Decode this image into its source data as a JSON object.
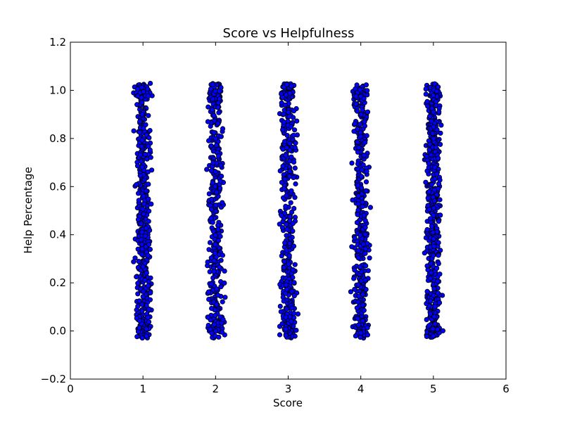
{
  "chart_data": {
    "type": "scatter",
    "title": "Score vs Helpfulness",
    "xlabel": "Score",
    "ylabel": "Help Percentage",
    "xlim": [
      0,
      6
    ],
    "ylim": [
      -0.2,
      1.2
    ],
    "xticks": [
      "0",
      "1",
      "2",
      "3",
      "4",
      "5",
      "6"
    ],
    "yticks": [
      "−0.2",
      "0.0",
      "0.2",
      "0.4",
      "0.6",
      "0.8",
      "1.0",
      "1.2"
    ],
    "grid": false,
    "legend": "none",
    "marker_color": "#0000ff",
    "marker_edge": "#000000",
    "clusters": [
      {
        "x_center": 1,
        "jitter": 0.15,
        "y_min": -0.04,
        "y_max": 1.04,
        "count": 520
      },
      {
        "x_center": 2,
        "jitter": 0.15,
        "y_min": -0.04,
        "y_max": 1.04,
        "count": 420
      },
      {
        "x_center": 3,
        "jitter": 0.15,
        "y_min": -0.04,
        "y_max": 1.04,
        "count": 440
      },
      {
        "x_center": 4,
        "jitter": 0.15,
        "y_min": -0.04,
        "y_max": 1.04,
        "count": 460
      },
      {
        "x_center": 5,
        "jitter": 0.15,
        "y_min": -0.04,
        "y_max": 1.04,
        "count": 560
      }
    ]
  }
}
